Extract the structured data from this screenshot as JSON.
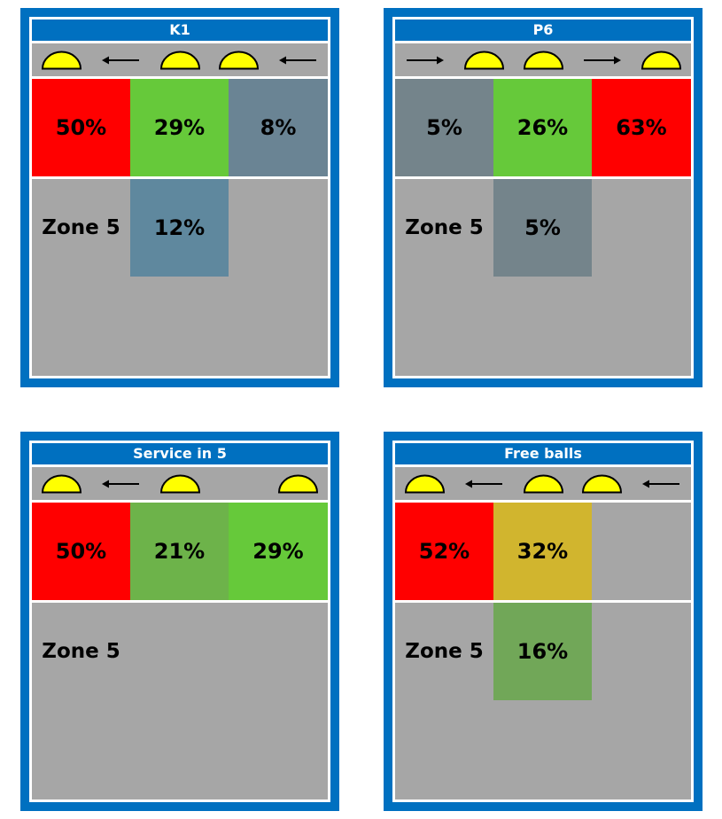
{
  "panels": [
    {
      "title": "K1",
      "symbols": [
        "dome",
        "arrow-left",
        "dome",
        "dome",
        "arrow-left"
      ],
      "front_row": [
        {
          "value": "50%",
          "color": "#ff0000"
        },
        {
          "value": "29%",
          "color": "#66c93a"
        },
        {
          "value": "8%",
          "color": "#6a8494"
        }
      ],
      "zone_label": "Zone 5",
      "back_row": [
        {
          "value": "",
          "color": ""
        },
        {
          "value": "12%",
          "color": "#5f889e"
        },
        {
          "value": "",
          "color": ""
        }
      ]
    },
    {
      "title": "P6",
      "symbols": [
        "arrow-right",
        "dome",
        "dome",
        "arrow-right",
        "dome"
      ],
      "front_row": [
        {
          "value": "5%",
          "color": "#74848b"
        },
        {
          "value": "26%",
          "color": "#66c93a"
        },
        {
          "value": "63%",
          "color": "#ff0000"
        }
      ],
      "zone_label": "Zone 5",
      "back_row": [
        {
          "value": "",
          "color": ""
        },
        {
          "value": "5%",
          "color": "#74848b"
        },
        {
          "value": "",
          "color": ""
        }
      ]
    },
    {
      "title": "Service in 5",
      "symbols": [
        "dome",
        "arrow-left",
        "dome",
        "",
        "dome"
      ],
      "front_row": [
        {
          "value": "50%",
          "color": "#ff0000"
        },
        {
          "value": "21%",
          "color": "#6db34a"
        },
        {
          "value": "29%",
          "color": "#66c93a"
        }
      ],
      "zone_label": "Zone 5",
      "back_row": [
        {
          "value": "",
          "color": ""
        },
        {
          "value": "",
          "color": ""
        },
        {
          "value": "",
          "color": ""
        }
      ]
    },
    {
      "title": "Free balls",
      "symbols": [
        "dome",
        "arrow-left",
        "dome",
        "dome",
        "arrow-left"
      ],
      "front_row": [
        {
          "value": "52%",
          "color": "#ff0000"
        },
        {
          "value": "32%",
          "color": "#d1b52e"
        },
        {
          "value": "",
          "color": ""
        }
      ],
      "zone_label": "Zone 5",
      "back_row": [
        {
          "value": "",
          "color": ""
        },
        {
          "value": "16%",
          "color": "#71a758"
        },
        {
          "value": "",
          "color": ""
        }
      ]
    }
  ]
}
